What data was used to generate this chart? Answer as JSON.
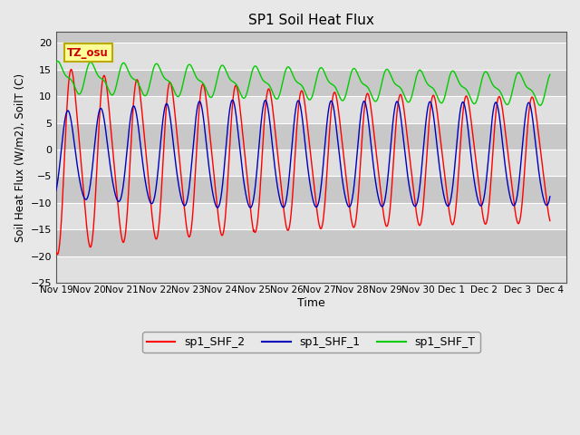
{
  "title": "SP1 Soil Heat Flux",
  "xlabel": "Time",
  "ylabel": "Soil Heat Flux (W/m2), SoilT (C)",
  "ylim": [
    -25,
    22
  ],
  "yticks": [
    -25,
    -20,
    -15,
    -10,
    -5,
    0,
    5,
    10,
    15,
    20
  ],
  "bg_color": "#e8e8e8",
  "plot_bg_color": "#c8c8c8",
  "band_light": "#e0e0e0",
  "band_dark": "#c8c8c8",
  "tz_label": "TZ_osu",
  "legend_labels": [
    "sp1_SHF_2",
    "sp1_SHF_1",
    "sp1_SHF_T"
  ],
  "line_colors": [
    "#ff0000",
    "#0000bb",
    "#00cc00"
  ],
  "grid_color": "#ffffff"
}
